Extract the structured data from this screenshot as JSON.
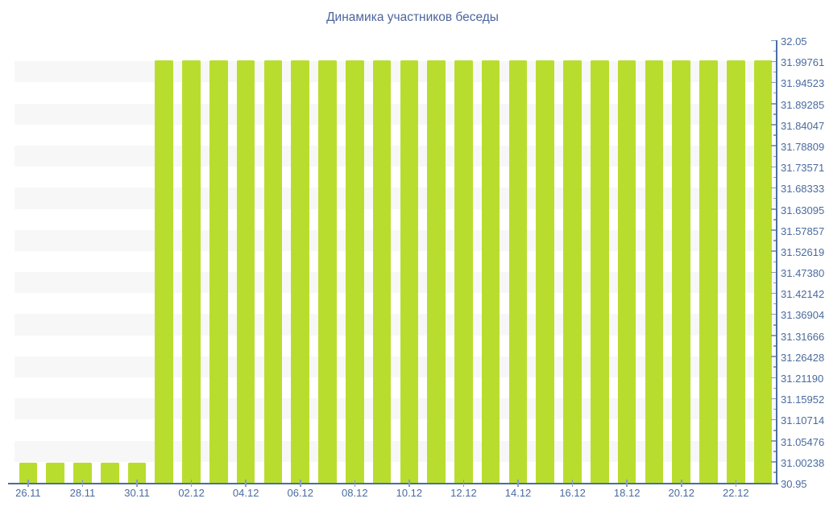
{
  "title": "Динамика участников беседы",
  "colors": {
    "background": "#ffffff",
    "bar": "#b9dd2f",
    "axis_line": "#4a6da5",
    "tick": "#8b9cbd",
    "label_text": "#4a6b9f",
    "title_text": "#4d659d",
    "stripe": "#f7f7f7"
  },
  "chart_data": {
    "type": "bar",
    "title": "Динамика участников беседы",
    "xlabel": "",
    "ylabel": "",
    "legend": "none",
    "y_axis_side": "right",
    "grid": "alternating horizontal stripes",
    "ylim": [
      30.95,
      32.05
    ],
    "categories": [
      "26.11",
      "27.11",
      "28.11",
      "29.11",
      "30.11",
      "01.12",
      "02.12",
      "03.12",
      "04.12",
      "05.12",
      "06.12",
      "07.12",
      "08.12",
      "09.12",
      "10.12",
      "11.12",
      "12.12",
      "13.12",
      "14.12",
      "15.12",
      "16.12",
      "17.12",
      "18.12",
      "19.12",
      "20.12",
      "21.12",
      "22.12",
      "23.12"
    ],
    "values": [
      31,
      31,
      31,
      31,
      31,
      32,
      32,
      32,
      32,
      32,
      32,
      32,
      32,
      32,
      32,
      32,
      32,
      32,
      32,
      32,
      32,
      32,
      32,
      32,
      32,
      32,
      32,
      32
    ],
    "x_tick_labels": [
      "26.11",
      "28.11",
      "30.11",
      "02.12",
      "04.12",
      "06.12",
      "08.12",
      "10.12",
      "12.12",
      "14.12",
      "16.12",
      "18.12",
      "20.12",
      "22.12"
    ],
    "x_tick_bar_indices": [
      0,
      2,
      4,
      6,
      8,
      10,
      12,
      14,
      16,
      18,
      20,
      22,
      24,
      26
    ],
    "y_tick_labels": [
      "32.05",
      "31.99761",
      "31.94523",
      "31.89285",
      "31.84047",
      "31.78809",
      "31.73571",
      "31.68333",
      "31.63095",
      "31.57857",
      "31.52619",
      "31.47380",
      "31.42142",
      "31.36904",
      "31.31666",
      "31.26428",
      "31.21190",
      "31.15952",
      "31.10714",
      "31.05476",
      "31.00238",
      "30.95"
    ]
  }
}
